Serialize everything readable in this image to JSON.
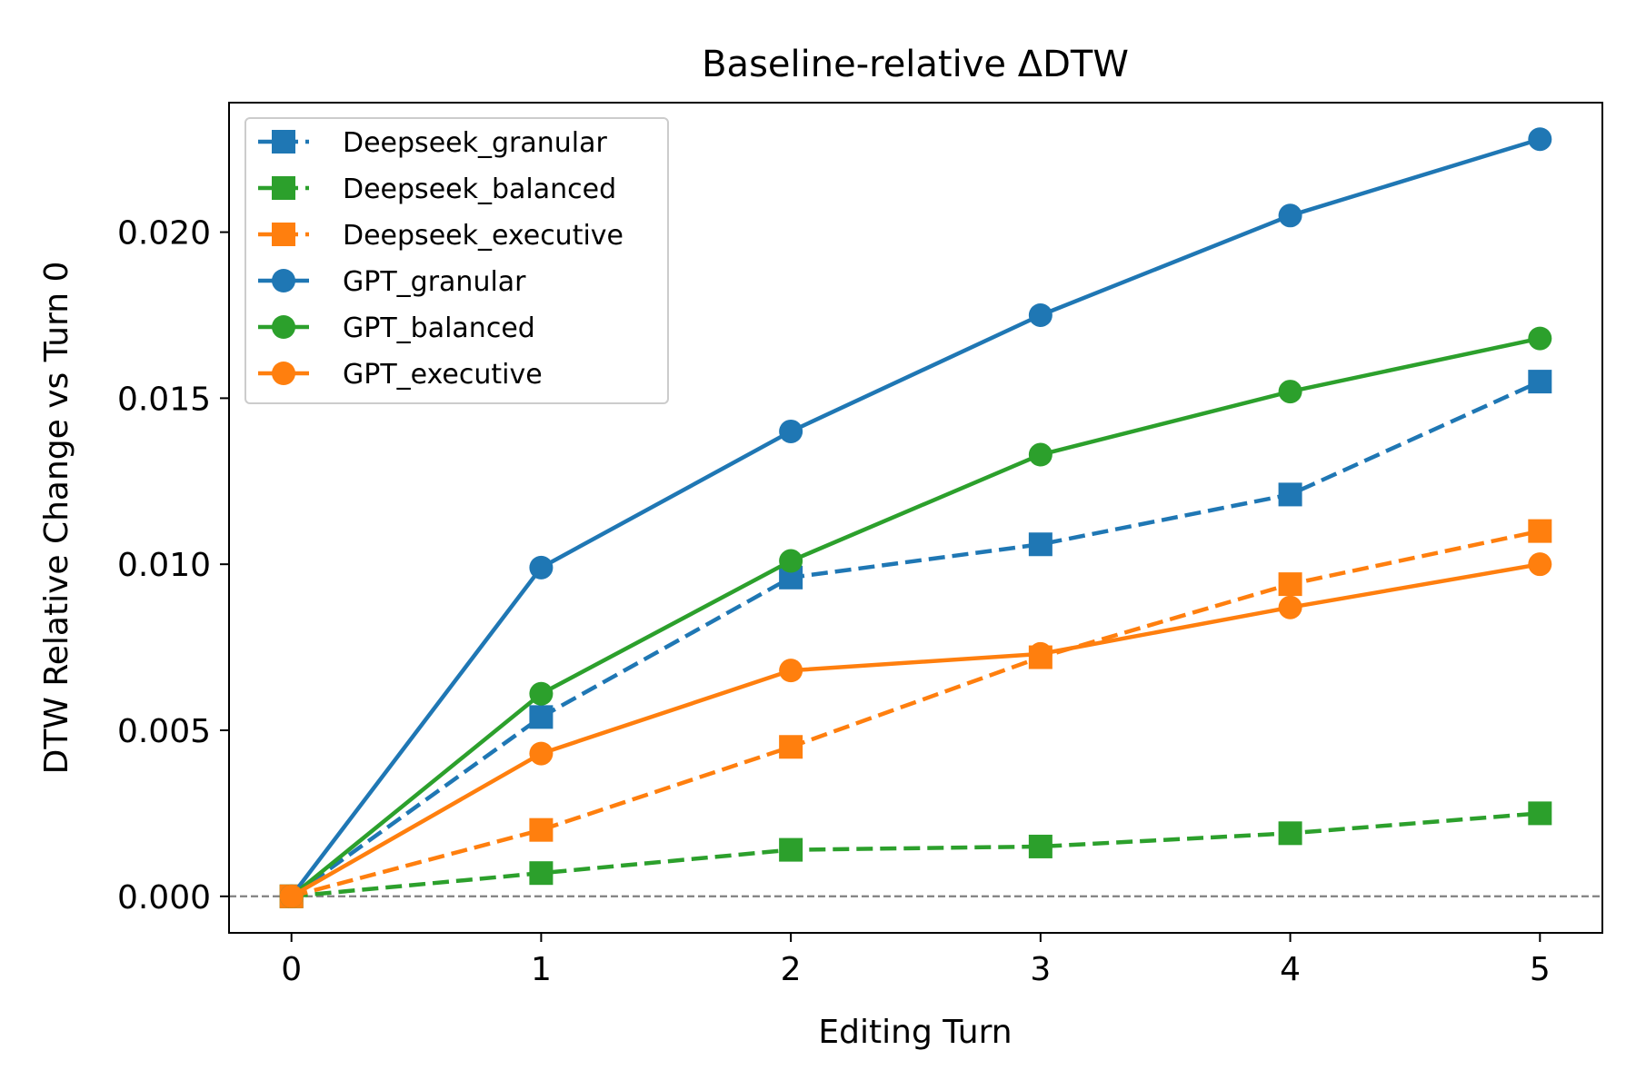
{
  "chart_data": {
    "type": "line",
    "title": "Baseline-relative ΔDTW",
    "xlabel": "Editing Turn",
    "ylabel": "DTW Relative Change vs Turn 0",
    "x": [
      0,
      1,
      2,
      3,
      4,
      5
    ],
    "xlim": [
      -0.25,
      5.25
    ],
    "ylim": [
      -0.0011,
      0.0239
    ],
    "xticks": [
      0,
      1,
      2,
      3,
      4,
      5
    ],
    "xtick_labels": [
      "0",
      "1",
      "2",
      "3",
      "4",
      "5"
    ],
    "yticks": [
      0.0,
      0.005,
      0.01,
      0.015,
      0.02
    ],
    "ytick_labels": [
      "0.000",
      "0.005",
      "0.010",
      "0.015",
      "0.020"
    ],
    "grid": false,
    "legend_position": "top-left",
    "reference_line": {
      "y": 0,
      "style": "dashed",
      "color": "#808080"
    },
    "series": [
      {
        "name": "Deepseek_granular",
        "color": "#1f77b4",
        "marker": "square",
        "linestyle": "dashed",
        "values": [
          0.0,
          0.0054,
          0.0096,
          0.0106,
          0.0121,
          0.0155
        ]
      },
      {
        "name": "Deepseek_balanced",
        "color": "#2ca02c",
        "marker": "square",
        "linestyle": "dashed",
        "values": [
          0.0,
          0.0007,
          0.0014,
          0.0015,
          0.0019,
          0.0025
        ]
      },
      {
        "name": "Deepseek_executive",
        "color": "#ff7f0e",
        "marker": "square",
        "linestyle": "dashed",
        "values": [
          0.0,
          0.002,
          0.0045,
          0.0072,
          0.0094,
          0.011
        ]
      },
      {
        "name": "GPT_granular",
        "color": "#1f77b4",
        "marker": "circle",
        "linestyle": "solid",
        "values": [
          0.0,
          0.0099,
          0.014,
          0.0175,
          0.0205,
          0.0228
        ]
      },
      {
        "name": "GPT_balanced",
        "color": "#2ca02c",
        "marker": "circle",
        "linestyle": "solid",
        "values": [
          0.0,
          0.0061,
          0.0101,
          0.0133,
          0.0152,
          0.0168
        ]
      },
      {
        "name": "GPT_executive",
        "color": "#ff7f0e",
        "marker": "circle",
        "linestyle": "solid",
        "values": [
          0.0,
          0.0043,
          0.0068,
          0.0073,
          0.0087,
          0.01
        ]
      }
    ]
  }
}
